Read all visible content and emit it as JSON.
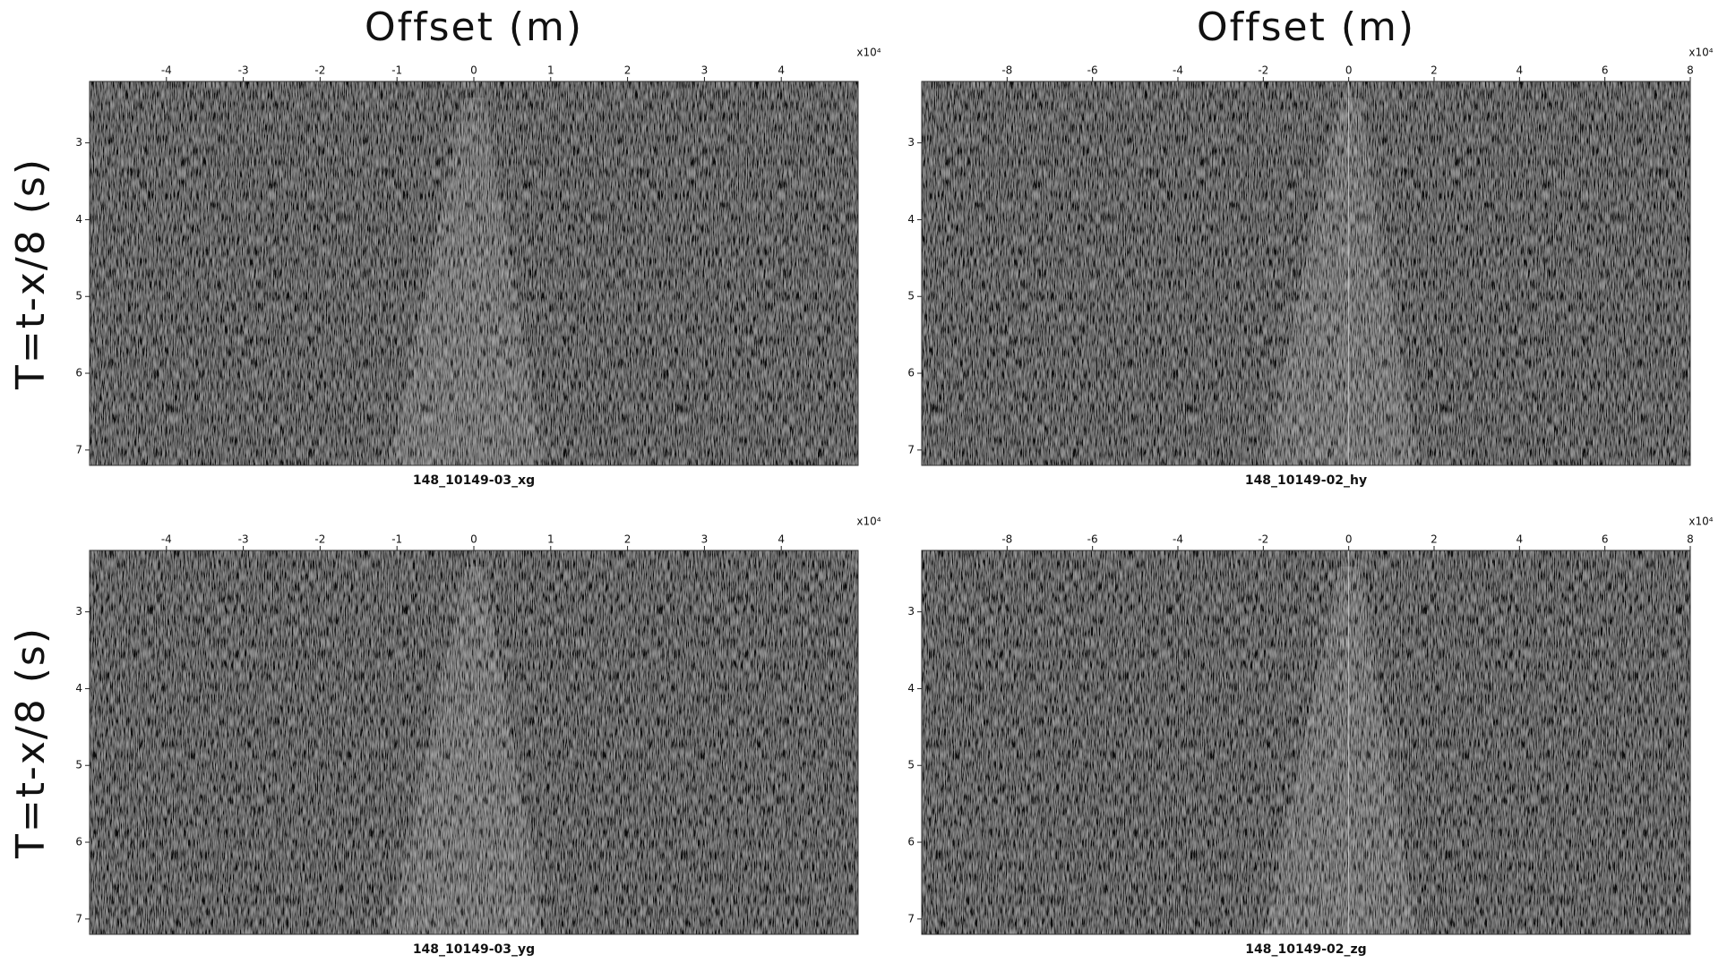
{
  "chart_data": [
    {
      "type": "seismic",
      "title": "148_10149-03_xg",
      "xlabel": "Offset (m)",
      "ylabel": "T=t-x/8 (s)",
      "xscale_label": "x10⁴",
      "xlim": [
        -5,
        5
      ],
      "xticks": [
        -4,
        -3,
        -2,
        -1,
        0,
        1,
        2,
        3,
        4
      ],
      "ylim": [
        2.2,
        7.2
      ],
      "yticks": [
        3,
        4,
        5,
        6,
        7
      ]
    },
    {
      "type": "seismic",
      "title": "148_10149-02_hy",
      "xlabel": "Offset (m)",
      "xscale_label": "x10⁴",
      "xlim": [
        -10,
        8
      ],
      "xticks": [
        -8,
        -6,
        -4,
        -2,
        0,
        2,
        4,
        6,
        8
      ],
      "ylim": [
        2.2,
        7.2
      ],
      "yticks": [
        3,
        4,
        5,
        6,
        7
      ]
    },
    {
      "type": "seismic",
      "title": "148_10149-03_yg",
      "ylabel": "T=t-x/8 (s)",
      "xscale_label": "x10⁴",
      "xlim": [
        -5,
        5
      ],
      "xticks": [
        -4,
        -3,
        -2,
        -1,
        0,
        1,
        2,
        3,
        4
      ],
      "ylim": [
        2.2,
        7.2
      ],
      "yticks": [
        3,
        4,
        5,
        6,
        7
      ]
    },
    {
      "type": "seismic",
      "title": "148_10149-02_zg",
      "xscale_label": "x10⁴",
      "xlim": [
        -10,
        8
      ],
      "xticks": [
        -8,
        -6,
        -4,
        -2,
        0,
        2,
        4,
        6,
        8
      ],
      "ylim": [
        2.2,
        7.2
      ],
      "yticks": [
        3,
        4,
        5,
        6,
        7
      ]
    }
  ]
}
